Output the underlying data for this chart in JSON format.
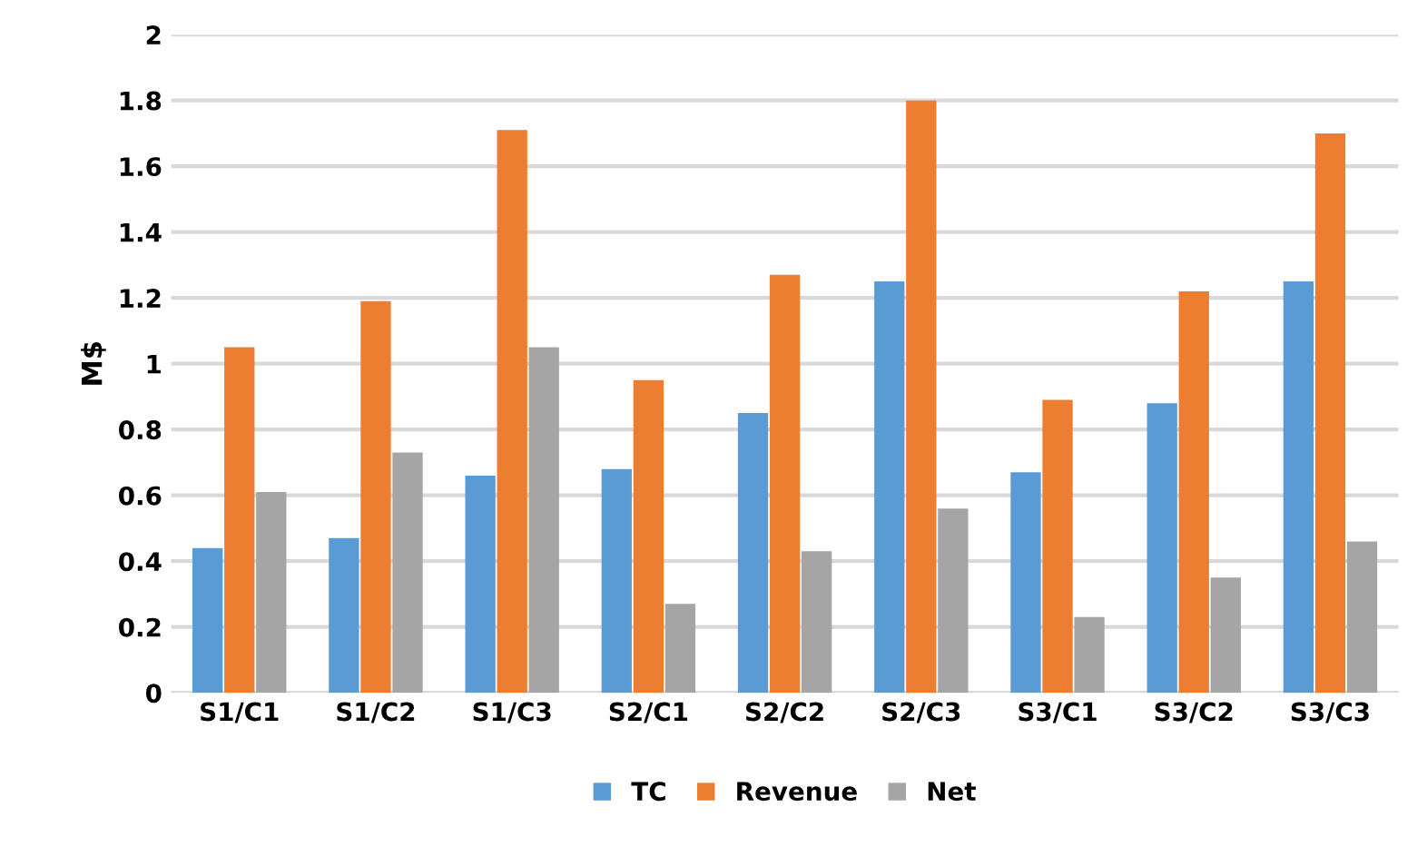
{
  "chart_data": {
    "type": "bar",
    "ylabel": "M$",
    "categories": [
      "S1/C1",
      "S1/C2",
      "S1/C3",
      "S2/C1",
      "S2/C2",
      "S2/C3",
      "S3/C1",
      "S3/C2",
      "S3/C3"
    ],
    "series": [
      {
        "name": "TC",
        "color": "#5b9bd5",
        "values": [
          0.44,
          0.47,
          0.66,
          0.68,
          0.85,
          1.25,
          0.67,
          0.88,
          1.25
        ]
      },
      {
        "name": "Revenue",
        "color": "#ed7d31",
        "values": [
          1.05,
          1.19,
          1.71,
          0.95,
          1.27,
          1.8,
          0.89,
          1.22,
          1.7
        ]
      },
      {
        "name": "Net",
        "color": "#a5a5a5",
        "values": [
          0.61,
          0.73,
          1.05,
          0.27,
          0.43,
          0.56,
          0.23,
          0.35,
          0.46
        ]
      }
    ],
    "ylim": [
      0,
      2
    ],
    "yticks": [
      0,
      0.2,
      0.4,
      0.6,
      0.8,
      1,
      1.2,
      1.4,
      1.6,
      1.8,
      2
    ],
    "grid": "y",
    "legend": "bottom"
  }
}
